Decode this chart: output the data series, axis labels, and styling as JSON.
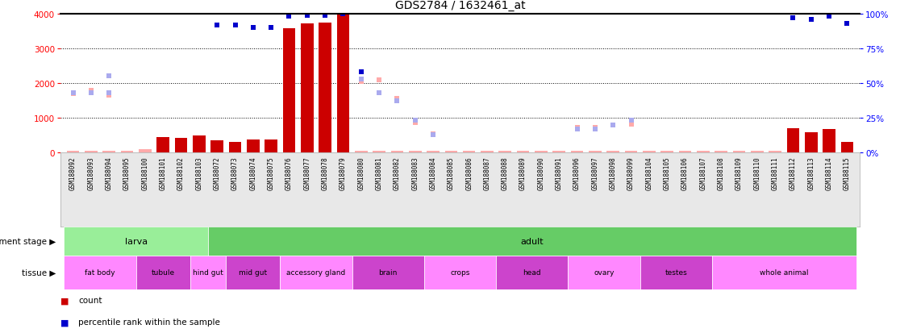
{
  "title": "GDS2784 / 1632461_at",
  "samples": [
    "GSM188092",
    "GSM188093",
    "GSM188094",
    "GSM188095",
    "GSM188100",
    "GSM188101",
    "GSM188102",
    "GSM188103",
    "GSM188072",
    "GSM188073",
    "GSM188074",
    "GSM188075",
    "GSM188076",
    "GSM188077",
    "GSM188078",
    "GSM188079",
    "GSM188080",
    "GSM188081",
    "GSM188082",
    "GSM188083",
    "GSM188084",
    "GSM188085",
    "GSM188086",
    "GSM188087",
    "GSM188088",
    "GSM188089",
    "GSM188090",
    "GSM188091",
    "GSM188096",
    "GSM188097",
    "GSM188098",
    "GSM188099",
    "GSM188104",
    "GSM188105",
    "GSM188106",
    "GSM188107",
    "GSM188108",
    "GSM188109",
    "GSM188110",
    "GSM188111",
    "GSM188112",
    "GSM188113",
    "GSM188114",
    "GSM188115"
  ],
  "count_values": [
    50,
    50,
    50,
    50,
    100,
    450,
    430,
    490,
    350,
    300,
    370,
    380,
    3570,
    3720,
    3750,
    3980,
    50,
    50,
    50,
    50,
    50,
    50,
    50,
    50,
    50,
    50,
    50,
    50,
    50,
    50,
    50,
    50,
    50,
    50,
    50,
    50,
    50,
    50,
    50,
    50,
    700,
    580,
    670,
    300
  ],
  "count_absent": [
    true,
    true,
    true,
    true,
    true,
    false,
    false,
    false,
    false,
    false,
    false,
    false,
    false,
    false,
    false,
    false,
    true,
    true,
    true,
    true,
    true,
    true,
    true,
    true,
    true,
    true,
    true,
    true,
    true,
    true,
    true,
    true,
    true,
    true,
    true,
    true,
    true,
    true,
    true,
    true,
    false,
    false,
    false,
    false
  ],
  "rank_values": [
    43,
    43,
    55,
    null,
    null,
    null,
    null,
    null,
    92,
    92,
    90,
    90,
    98,
    99,
    99,
    100,
    58,
    43,
    null,
    null,
    null,
    null,
    null,
    null,
    null,
    null,
    null,
    null,
    null,
    null,
    null,
    null,
    null,
    null,
    null,
    null,
    null,
    null,
    null,
    null,
    97,
    96,
    98,
    93
  ],
  "rank_absent": [
    true,
    true,
    true,
    null,
    null,
    null,
    null,
    null,
    false,
    false,
    false,
    false,
    false,
    false,
    false,
    false,
    false,
    true,
    null,
    null,
    null,
    null,
    null,
    null,
    null,
    null,
    null,
    null,
    null,
    null,
    null,
    null,
    null,
    null,
    null,
    null,
    null,
    null,
    null,
    null,
    false,
    false,
    false,
    false
  ],
  "absent_val_scatter": [
    1700,
    1800,
    1650,
    null,
    null,
    null,
    null,
    null,
    null,
    null,
    null,
    null,
    null,
    null,
    null,
    null,
    2050,
    2100,
    1550,
    850,
    540,
    null,
    null,
    null,
    null,
    null,
    null,
    null,
    720,
    730,
    790,
    820,
    null,
    null,
    null,
    null,
    null,
    null,
    null,
    null,
    null,
    null,
    null,
    null
  ],
  "absent_rank_scatter": [
    43,
    43,
    43,
    null,
    null,
    null,
    null,
    null,
    null,
    null,
    null,
    null,
    null,
    null,
    null,
    null,
    53,
    43,
    37,
    23,
    13,
    null,
    null,
    null,
    null,
    null,
    null,
    null,
    17,
    17,
    20,
    23,
    null,
    null,
    null,
    null,
    null,
    null,
    null,
    null,
    null,
    null,
    null,
    null
  ],
  "dev_stages": [
    {
      "label": "larva",
      "start": 0,
      "end": 8,
      "color": "#99ee99"
    },
    {
      "label": "adult",
      "start": 8,
      "end": 44,
      "color": "#66cc66"
    }
  ],
  "tissues": [
    {
      "label": "fat body",
      "start": 0,
      "end": 4,
      "color": "#ff88ff"
    },
    {
      "label": "tubule",
      "start": 4,
      "end": 7,
      "color": "#cc44cc"
    },
    {
      "label": "hind gut",
      "start": 7,
      "end": 9,
      "color": "#ff88ff"
    },
    {
      "label": "mid gut",
      "start": 9,
      "end": 12,
      "color": "#cc44cc"
    },
    {
      "label": "accessory gland",
      "start": 12,
      "end": 16,
      "color": "#ff88ff"
    },
    {
      "label": "brain",
      "start": 16,
      "end": 20,
      "color": "#cc44cc"
    },
    {
      "label": "crops",
      "start": 20,
      "end": 24,
      "color": "#ff88ff"
    },
    {
      "label": "head",
      "start": 24,
      "end": 28,
      "color": "#cc44cc"
    },
    {
      "label": "ovary",
      "start": 28,
      "end": 32,
      "color": "#ff88ff"
    },
    {
      "label": "testes",
      "start": 32,
      "end": 36,
      "color": "#cc44cc"
    },
    {
      "label": "whole animal",
      "start": 36,
      "end": 44,
      "color": "#ff88ff"
    }
  ],
  "ylim_left": [
    0,
    4000
  ],
  "ylim_right": [
    0,
    100
  ],
  "yticks_left": [
    0,
    1000,
    2000,
    3000,
    4000
  ],
  "yticks_right": [
    0,
    25,
    50,
    75,
    100
  ],
  "bar_color_present": "#cc0000",
  "bar_color_absent": "#ffaaaa",
  "dot_color_present": "#0000cc",
  "dot_color_absent": "#aaaaee",
  "tick_bg_color": "#e8e8e8"
}
